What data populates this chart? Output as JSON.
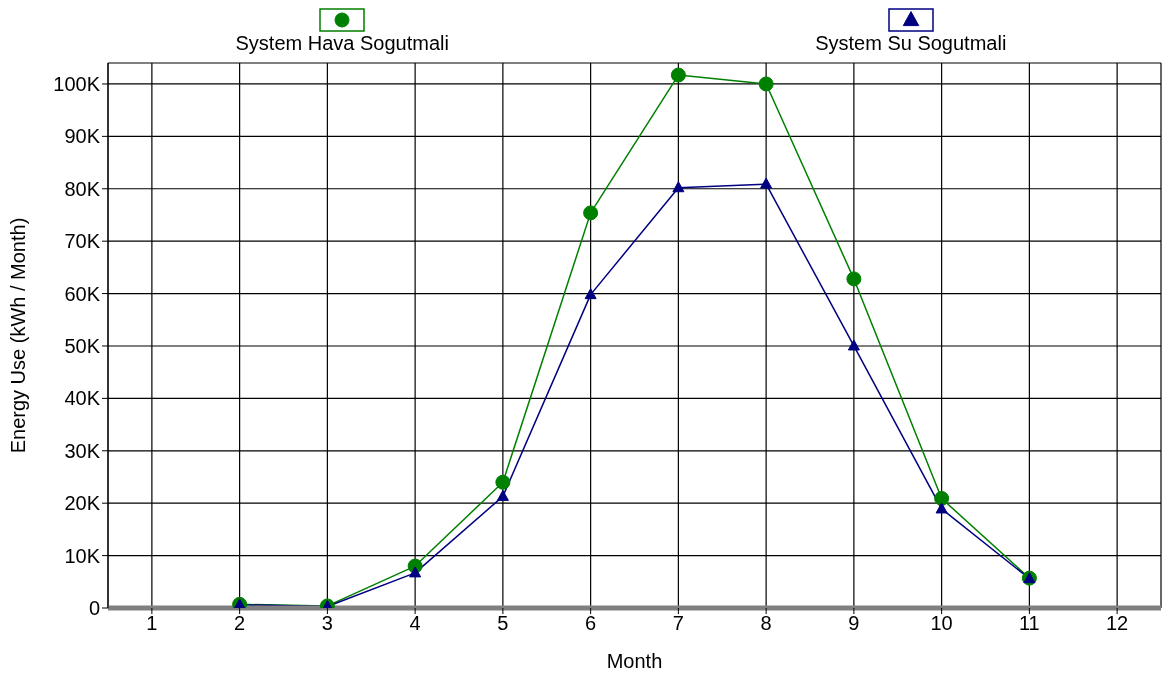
{
  "chart_data": {
    "type": "line",
    "xlabel": "Month",
    "ylabel": "Energy Use (kWh / Month)",
    "x": [
      2,
      3,
      4,
      5,
      6,
      7,
      8,
      9,
      10,
      11
    ],
    "xlim": [
      0.5,
      12.5
    ],
    "xticks": [
      1,
      2,
      3,
      4,
      5,
      6,
      7,
      8,
      9,
      10,
      11,
      12
    ],
    "ylim": [
      0,
      104000
    ],
    "yticks": [
      {
        "value": 0,
        "label": "0"
      },
      {
        "value": 10000,
        "label": "10K"
      },
      {
        "value": 20000,
        "label": "20K"
      },
      {
        "value": 30000,
        "label": "30K"
      },
      {
        "value": 40000,
        "label": "40K"
      },
      {
        "value": 50000,
        "label": "50K"
      },
      {
        "value": 60000,
        "label": "60K"
      },
      {
        "value": 70000,
        "label": "70K"
      },
      {
        "value": 80000,
        "label": "80K"
      },
      {
        "value": 90000,
        "label": "90K"
      },
      {
        "value": 100000,
        "label": "100K"
      }
    ],
    "grid": true,
    "legend": "top",
    "series": [
      {
        "name": "System Hava Sogutmali",
        "color": "#008000",
        "marker": "circle",
        "values": [
          700,
          400,
          8000,
          24000,
          75400,
          101700,
          100000,
          62800,
          20900,
          5700
        ]
      },
      {
        "name": "System Su Sogutmali",
        "color": "#000080",
        "marker": "triangle",
        "values": [
          600,
          300,
          6700,
          21300,
          59800,
          80200,
          80900,
          50000,
          18900,
          5600
        ]
      }
    ]
  }
}
